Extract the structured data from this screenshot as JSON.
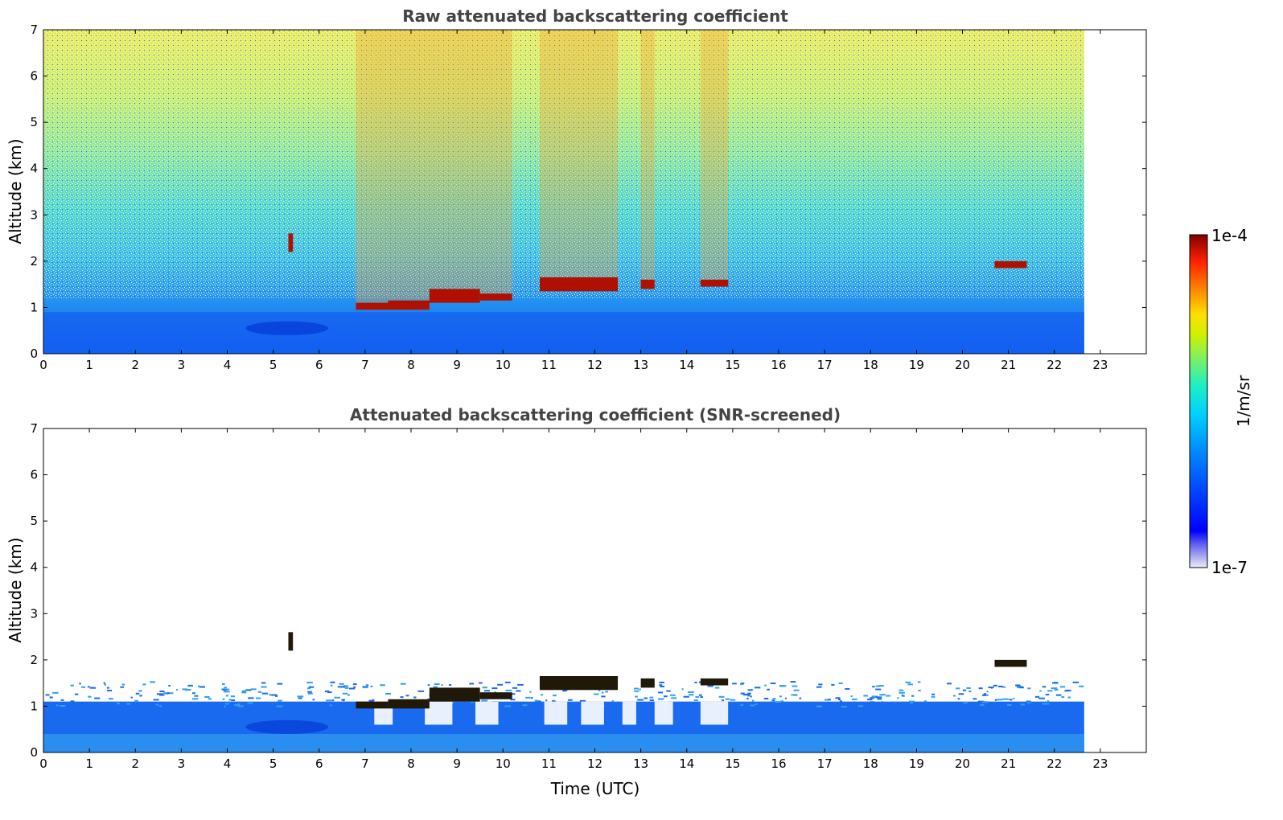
{
  "chart_data": [
    {
      "type": "heatmap",
      "title": "Raw attenuated backscattering coefficient",
      "xlabel": "",
      "ylabel": "Altitude (km)",
      "xlim": [
        0,
        24
      ],
      "ylim": [
        0,
        7
      ],
      "x_ticks": [
        "0",
        "1",
        "2",
        "3",
        "4",
        "5",
        "6",
        "7",
        "8",
        "9",
        "10",
        "11",
        "12",
        "13",
        "14",
        "15",
        "16",
        "17",
        "18",
        "19",
        "20",
        "21",
        "22",
        "23"
      ],
      "y_ticks": [
        "0",
        "1",
        "2",
        "3",
        "4",
        "5",
        "6",
        "7"
      ],
      "data_end_time": 22.65,
      "screened": false,
      "cloud_layers": [
        {
          "t0": 5.33,
          "t1": 5.43,
          "z0": 2.2,
          "z1": 2.6
        },
        {
          "t0": 6.8,
          "t1": 7.5,
          "z0": 0.95,
          "z1": 1.1
        },
        {
          "t0": 7.5,
          "t1": 8.4,
          "z0": 0.95,
          "z1": 1.15
        },
        {
          "t0": 8.4,
          "t1": 9.5,
          "z0": 1.1,
          "z1": 1.4
        },
        {
          "t0": 9.5,
          "t1": 10.2,
          "z0": 1.15,
          "z1": 1.3
        },
        {
          "t0": 10.8,
          "t1": 12.5,
          "z0": 1.35,
          "z1": 1.65
        },
        {
          "t0": 13.0,
          "t1": 13.3,
          "z0": 1.4,
          "z1": 1.6
        },
        {
          "t0": 14.3,
          "t1": 14.9,
          "z0": 1.45,
          "z1": 1.6
        },
        {
          "t0": 20.7,
          "t1": 21.4,
          "z0": 1.85,
          "z1": 2.0
        }
      ]
    },
    {
      "type": "heatmap",
      "title": "Attenuated backscattering coefficient (SNR-screened)",
      "xlabel": "Time (UTC)",
      "ylabel": "Altitude (km)",
      "xlim": [
        0,
        24
      ],
      "ylim": [
        0,
        7
      ],
      "x_ticks": [
        "0",
        "1",
        "2",
        "3",
        "4",
        "5",
        "6",
        "7",
        "8",
        "9",
        "10",
        "11",
        "12",
        "13",
        "14",
        "15",
        "16",
        "17",
        "18",
        "19",
        "20",
        "21",
        "22",
        "23"
      ],
      "y_ticks": [
        "0",
        "1",
        "2",
        "3",
        "4",
        "5",
        "6",
        "7"
      ],
      "data_end_time": 22.65,
      "screened": true,
      "cloud_layers": [
        {
          "t0": 5.33,
          "t1": 5.43,
          "z0": 2.2,
          "z1": 2.6
        },
        {
          "t0": 6.8,
          "t1": 7.5,
          "z0": 0.95,
          "z1": 1.1
        },
        {
          "t0": 7.5,
          "t1": 8.4,
          "z0": 0.95,
          "z1": 1.15
        },
        {
          "t0": 8.4,
          "t1": 9.5,
          "z0": 1.1,
          "z1": 1.4
        },
        {
          "t0": 9.5,
          "t1": 10.2,
          "z0": 1.15,
          "z1": 1.3
        },
        {
          "t0": 10.8,
          "t1": 12.5,
          "z0": 1.35,
          "z1": 1.65
        },
        {
          "t0": 13.0,
          "t1": 13.3,
          "z0": 1.4,
          "z1": 1.6
        },
        {
          "t0": 14.3,
          "t1": 14.9,
          "z0": 1.45,
          "z1": 1.6
        },
        {
          "t0": 20.7,
          "t1": 21.4,
          "z0": 1.85,
          "z1": 2.0
        }
      ]
    }
  ],
  "colorbar": {
    "max_label": "1e-4",
    "min_label": "1e-7",
    "unit_label": "1/m/sr",
    "scale": "log",
    "colormap": "jet",
    "colors": [
      "#e8e8f8",
      "#a0a0f0",
      "#0000ff",
      "#0080ff",
      "#00c8ff",
      "#00e6c0",
      "#60f060",
      "#c0f000",
      "#ffe000",
      "#ff8000",
      "#ff2000",
      "#800000"
    ]
  }
}
